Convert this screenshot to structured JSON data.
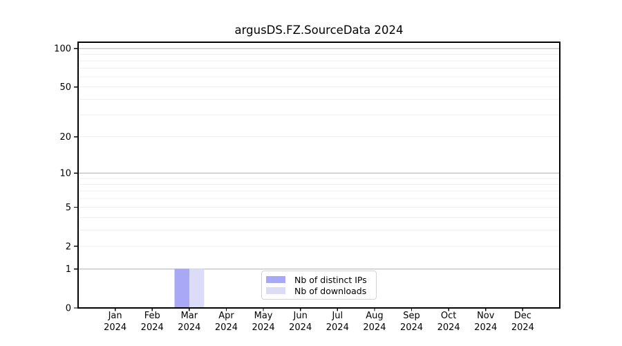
{
  "chart_data": {
    "type": "bar",
    "title": "argusDS.FZ.SourceData 2024",
    "year": "2024",
    "categories": [
      "Jan",
      "Feb",
      "Mar",
      "Apr",
      "May",
      "Jun",
      "Jul",
      "Aug",
      "Sep",
      "Oct",
      "Nov",
      "Dec"
    ],
    "series": [
      {
        "name": "Nb of distinct IPs",
        "color": "#a8a8f6",
        "values": [
          0,
          0,
          1,
          0,
          0,
          0,
          0,
          0,
          0,
          0,
          0,
          0
        ]
      },
      {
        "name": "Nb of downloads",
        "color": "#dcdcf9",
        "values": [
          0,
          0,
          1,
          0,
          0,
          0,
          0,
          0,
          0,
          0,
          0,
          0
        ]
      }
    ],
    "xlabel": "",
    "ylabel": "",
    "y_axis": {
      "scale": "log1p",
      "tick_values": [
        0,
        1,
        2,
        5,
        10,
        20,
        50,
        100
      ],
      "major_gridlines": [
        1,
        10,
        100
      ],
      "minor_gridlines": [
        2,
        3,
        4,
        5,
        6,
        7,
        8,
        9,
        20,
        30,
        40,
        50,
        60,
        70,
        80,
        90
      ],
      "ylim": [
        0,
        112
      ]
    },
    "legend": {
      "position": "lower center",
      "entries": [
        "Nb of distinct IPs",
        "Nb of downloads"
      ]
    },
    "style": {
      "major_grid_color": "#c8c8c8",
      "minor_grid_color": "#efefef",
      "axis_color": "#000000",
      "text_color": "#000000",
      "legend_border_color": "#d2d2d2",
      "background_color": "#ffffff"
    }
  }
}
